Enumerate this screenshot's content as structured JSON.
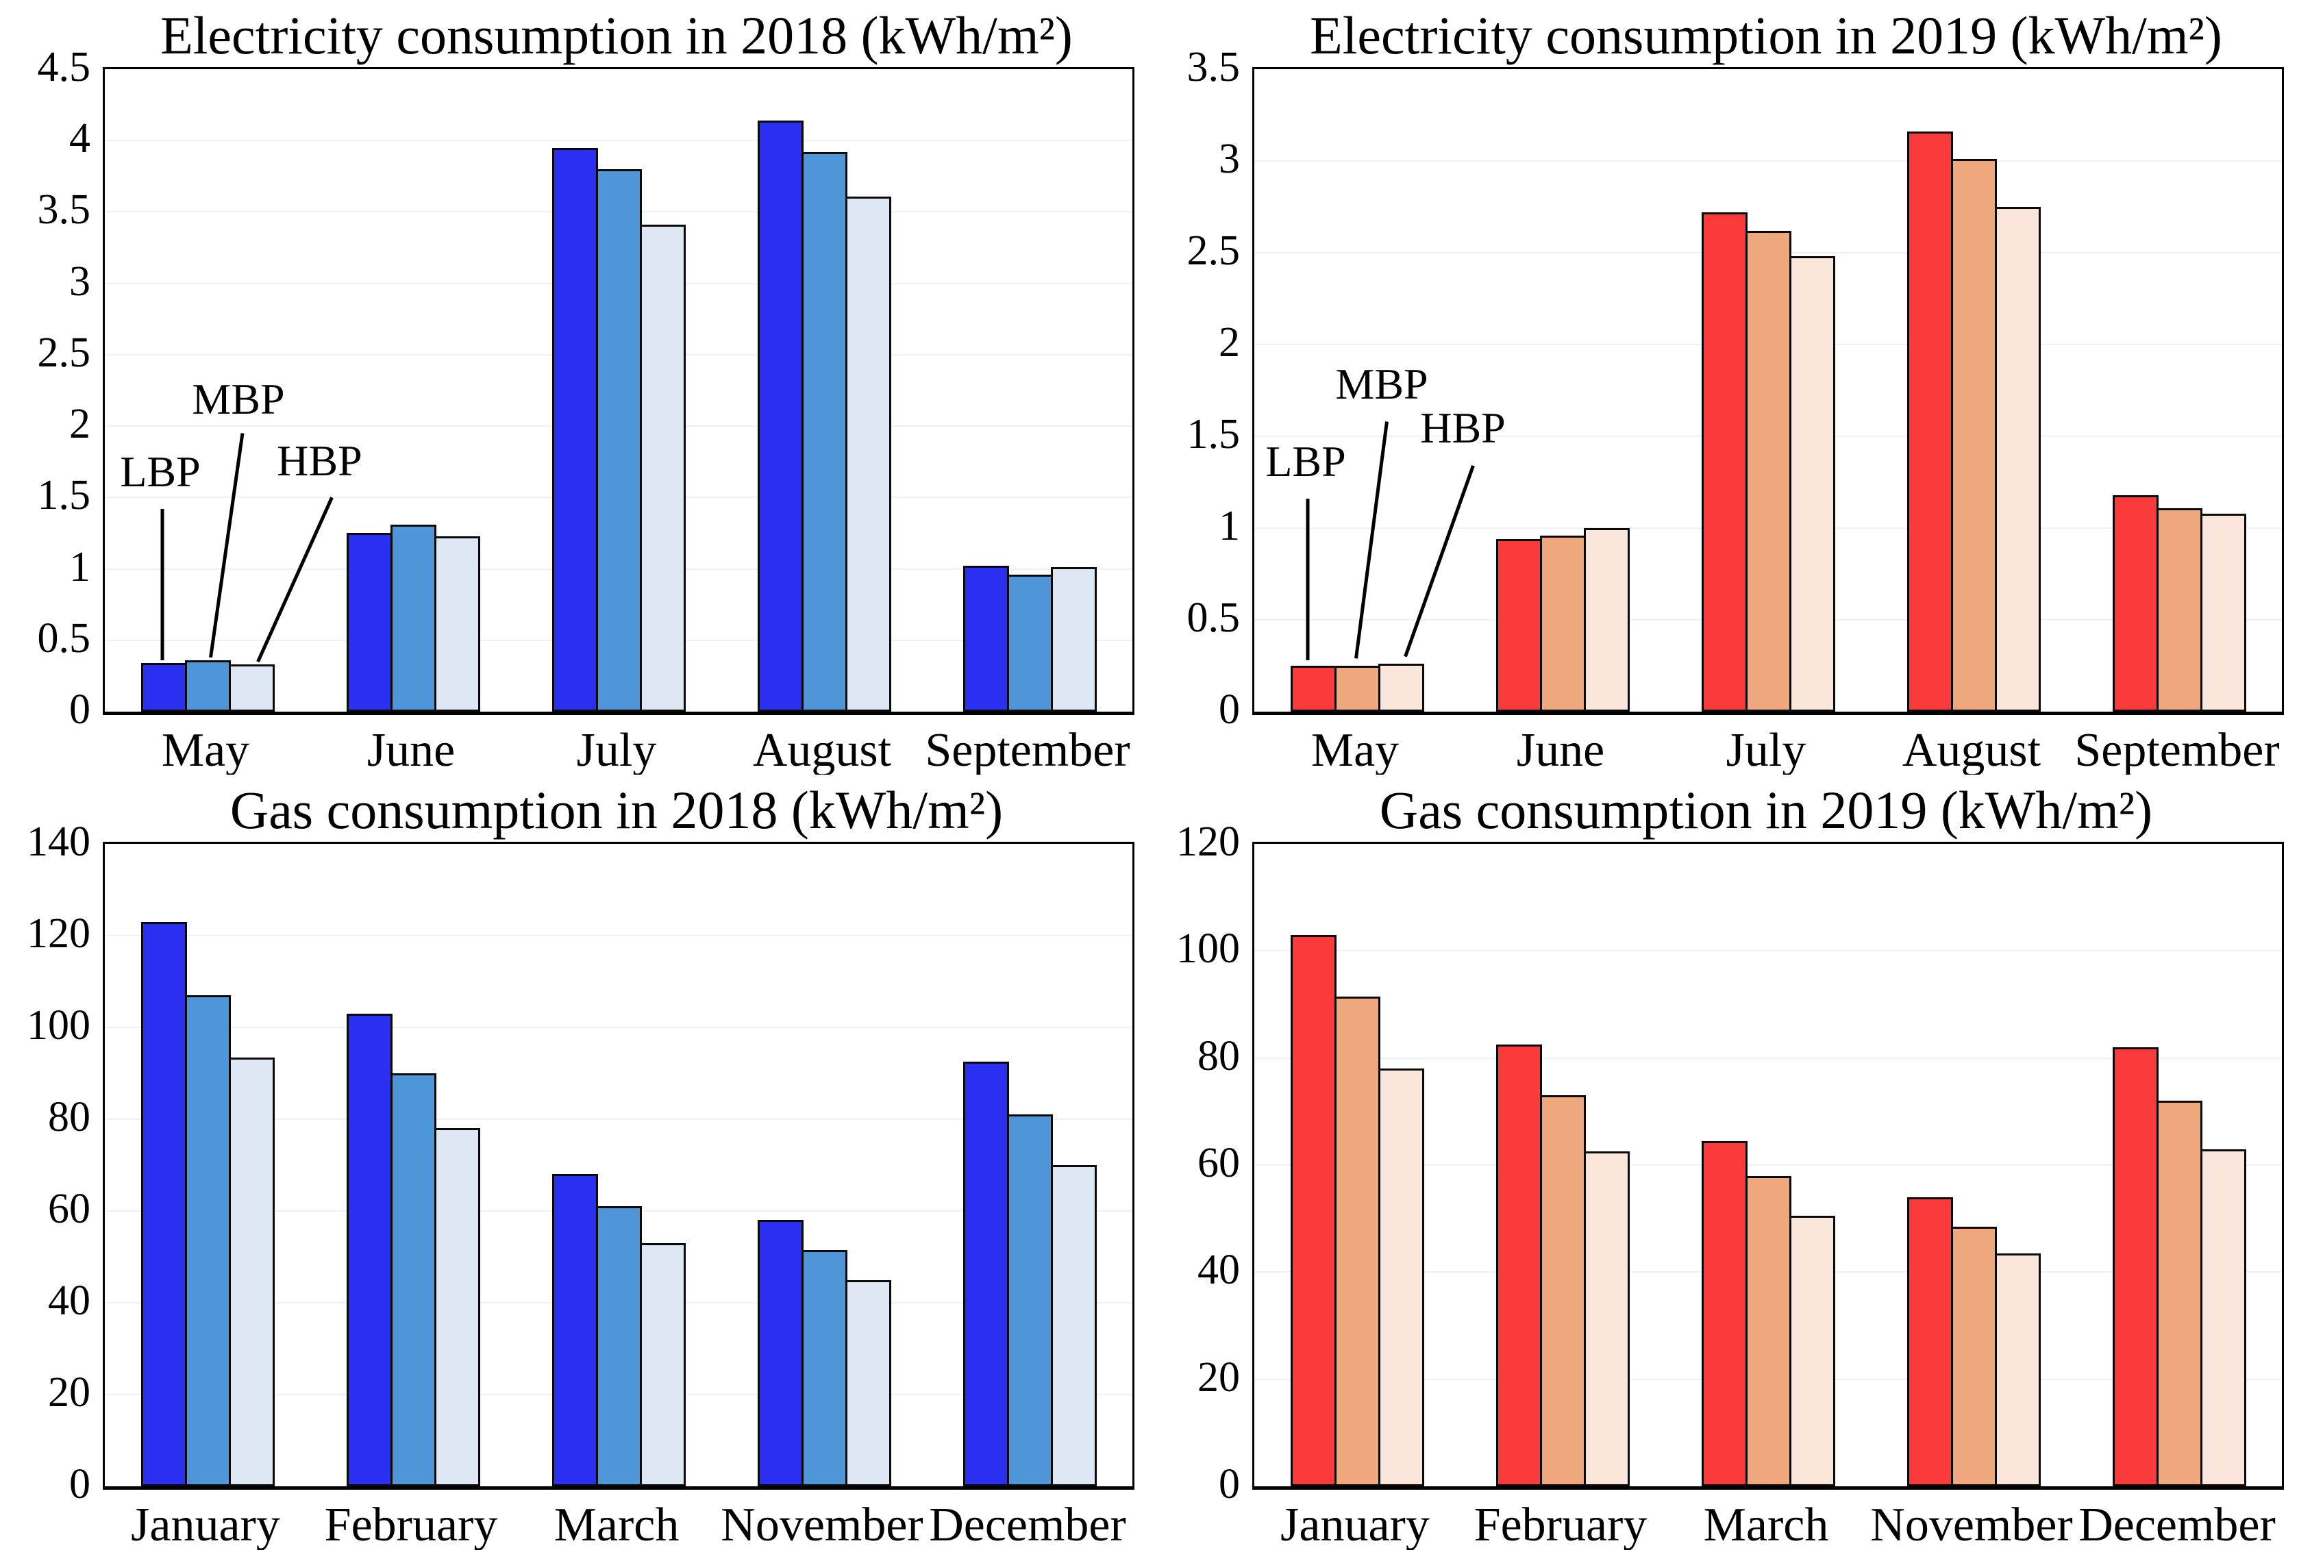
{
  "page": {
    "background": "#ffffff"
  },
  "series_labels": [
    "LBP",
    "MBP",
    "HBP"
  ],
  "palette_2018": {
    "LBP": "#2b2ff2",
    "MBP": "#4f96d8",
    "HBP": "#dde8f4",
    "edge": "#0a0a0a"
  },
  "palette_2019": {
    "LBP": "#fa3a3a",
    "MBP": "#efa87e",
    "HBP": "#fae6da",
    "edge": "#0a0a0a"
  },
  "chart_data": [
    {
      "id": "electricity-2018",
      "type": "bar",
      "title": "Electricity consumption in 2018 (kWh/m²)",
      "xlabel": "",
      "ylabel": "",
      "categories": [
        "May",
        "June",
        "July",
        "August",
        "September"
      ],
      "series": [
        {
          "name": "LBP",
          "color": "#2b2ff2",
          "values": [
            0.34,
            1.25,
            3.95,
            4.14,
            1.02
          ]
        },
        {
          "name": "MBP",
          "color": "#4f96d8",
          "values": [
            0.36,
            1.31,
            3.8,
            3.92,
            0.96
          ]
        },
        {
          "name": "HBP",
          "color": "#dde8f4",
          "values": [
            0.33,
            1.23,
            3.41,
            3.61,
            1.01
          ]
        }
      ],
      "ylim": [
        0,
        4.5
      ],
      "yticks": [
        "0",
        "0.5",
        "1",
        "1.5",
        "2",
        "2.5",
        "3",
        "3.5",
        "4",
        "4.5"
      ],
      "grid": true,
      "legend_position": "none",
      "annotations": [
        {
          "label": "LBP",
          "text_x_pct": 5.4,
          "text_bottom_val": 1.52,
          "line": {
            "x1_pct": 5.6,
            "y1_val": 1.42,
            "x2_pct": 5.6,
            "y2_val": 0.36
          }
        },
        {
          "label": "MBP",
          "text_x_pct": 13.0,
          "text_bottom_val": 2.03,
          "line": {
            "x1_pct": 13.4,
            "y1_val": 1.95,
            "x2_pct": 10.3,
            "y2_val": 0.38
          }
        },
        {
          "label": "HBP",
          "text_x_pct": 20.9,
          "text_bottom_val": 1.6,
          "line": {
            "x1_pct": 22.1,
            "y1_val": 1.5,
            "x2_pct": 14.9,
            "y2_val": 0.35
          }
        }
      ]
    },
    {
      "id": "electricity-2019",
      "type": "bar",
      "title": "Electricity consumption in 2019 (kWh/m²)",
      "xlabel": "",
      "ylabel": "",
      "categories": [
        "May",
        "June",
        "July",
        "August",
        "September"
      ],
      "series": [
        {
          "name": "LBP",
          "color": "#fa3a3a",
          "values": [
            0.25,
            0.94,
            2.72,
            3.16,
            1.18
          ]
        },
        {
          "name": "MBP",
          "color": "#efa87e",
          "values": [
            0.25,
            0.96,
            2.62,
            3.01,
            1.11
          ]
        },
        {
          "name": "HBP",
          "color": "#fae6da",
          "values": [
            0.26,
            1.0,
            2.48,
            2.75,
            1.08
          ]
        }
      ],
      "ylim": [
        0,
        3.5
      ],
      "yticks": [
        "0",
        "0.5",
        "1",
        "1.5",
        "2",
        "2.5",
        "3",
        "3.5"
      ],
      "grid": true,
      "legend_position": "none",
      "annotations": [
        {
          "label": "LBP",
          "text_x_pct": 5.0,
          "text_bottom_val": 1.24,
          "line": {
            "x1_pct": 5.2,
            "y1_val": 1.16,
            "x2_pct": 5.2,
            "y2_val": 0.28
          }
        },
        {
          "label": "MBP",
          "text_x_pct": 12.4,
          "text_bottom_val": 1.66,
          "line": {
            "x1_pct": 12.9,
            "y1_val": 1.58,
            "x2_pct": 9.9,
            "y2_val": 0.29
          }
        },
        {
          "label": "HBP",
          "text_x_pct": 20.3,
          "text_bottom_val": 1.42,
          "line": {
            "x1_pct": 21.3,
            "y1_val": 1.34,
            "x2_pct": 14.7,
            "y2_val": 0.3
          }
        }
      ]
    },
    {
      "id": "gas-2018",
      "type": "bar",
      "title": "Gas consumption in 2018 (kWh/m²)",
      "xlabel": "",
      "ylabel": "",
      "categories": [
        "January",
        "February",
        "March",
        "November",
        "December"
      ],
      "series": [
        {
          "name": "LBP",
          "color": "#2b2ff2",
          "values": [
            123,
            103,
            68,
            58,
            92.5
          ]
        },
        {
          "name": "MBP",
          "color": "#4f96d8",
          "values": [
            107,
            90,
            61,
            51.5,
            81
          ]
        },
        {
          "name": "HBP",
          "color": "#dde8f4",
          "values": [
            93.5,
            78,
            53,
            45,
            70
          ]
        }
      ],
      "ylim": [
        0,
        140
      ],
      "yticks": [
        "0",
        "20",
        "40",
        "60",
        "80",
        "100",
        "120",
        "140"
      ],
      "grid": true,
      "legend_position": "none",
      "annotations": []
    },
    {
      "id": "gas-2019",
      "type": "bar",
      "title": "Gas consumption in 2019 (kWh/m²)",
      "xlabel": "",
      "ylabel": "",
      "categories": [
        "January",
        "February",
        "March",
        "November",
        "December"
      ],
      "series": [
        {
          "name": "LBP",
          "color": "#fa3a3a",
          "values": [
            103,
            82.5,
            64.5,
            54,
            82
          ]
        },
        {
          "name": "MBP",
          "color": "#efa87e",
          "values": [
            91.5,
            73,
            58,
            48.5,
            72
          ]
        },
        {
          "name": "HBP",
          "color": "#fae6da",
          "values": [
            78,
            62.5,
            50.5,
            43.5,
            63
          ]
        }
      ],
      "ylim": [
        0,
        120
      ],
      "yticks": [
        "0",
        "20",
        "40",
        "60",
        "80",
        "100",
        "120"
      ],
      "grid": true,
      "legend_position": "none",
      "annotations": []
    }
  ]
}
